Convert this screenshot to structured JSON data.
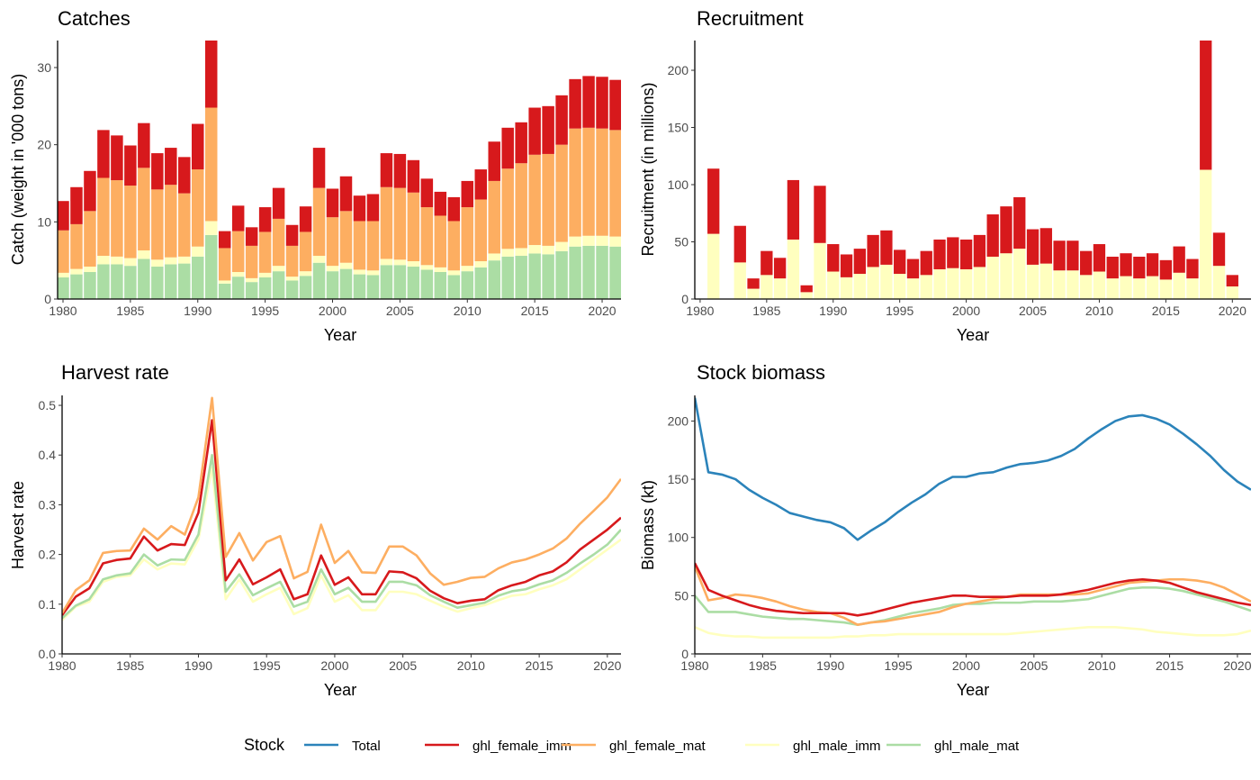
{
  "colors": {
    "Total": "#2b83ba",
    "ghl_female_imm": "#d7191c",
    "ghl_female_mat": "#fdae61",
    "ghl_male_imm": "#ffffbf",
    "ghl_male_mat": "#abdda4"
  },
  "legend": {
    "title": "Stock",
    "items": [
      "Total",
      "ghl_female_imm",
      "ghl_female_mat",
      "ghl_male_imm",
      "ghl_male_mat"
    ]
  },
  "chart_data": [
    {
      "id": "catches",
      "type": "bar",
      "stacked": true,
      "title": "Catches",
      "xlabel": "Year",
      "ylabel": "Catch (weight in '000 tons)",
      "xlim": [
        1979.6,
        2021.4
      ],
      "ylim": [
        0,
        33.5
      ],
      "xticks": [
        1980,
        1985,
        1990,
        1995,
        2000,
        2005,
        2010,
        2015,
        2020
      ],
      "yticks": [
        0,
        10,
        20,
        30
      ],
      "x": [
        1980,
        1981,
        1982,
        1983,
        1984,
        1985,
        1986,
        1987,
        1988,
        1989,
        1990,
        1991,
        1992,
        1993,
        1994,
        1995,
        1996,
        1997,
        1998,
        1999,
        2000,
        2001,
        2002,
        2003,
        2004,
        2005,
        2006,
        2007,
        2008,
        2009,
        2010,
        2011,
        2012,
        2013,
        2014,
        2015,
        2016,
        2017,
        2018,
        2019,
        2020,
        2021
      ],
      "stack_order": [
        "ghl_male_mat",
        "ghl_male_imm",
        "ghl_female_mat",
        "ghl_female_imm"
      ],
      "series": [
        {
          "name": "ghl_male_mat",
          "values": [
            2.8,
            3.2,
            3.5,
            4.5,
            4.5,
            4.3,
            5.2,
            4.2,
            4.5,
            4.6,
            5.5,
            8.3,
            2.0,
            2.9,
            2.2,
            2.8,
            3.6,
            2.4,
            3.0,
            4.7,
            3.6,
            3.9,
            3.2,
            3.1,
            4.4,
            4.4,
            4.2,
            3.8,
            3.5,
            3.1,
            3.6,
            4.1,
            5.0,
            5.5,
            5.6,
            5.9,
            5.8,
            6.2,
            6.8,
            6.9,
            6.9,
            6.8
          ]
        },
        {
          "name": "ghl_male_imm",
          "values": [
            0.6,
            0.7,
            0.7,
            1.1,
            1.0,
            1.0,
            1.1,
            0.9,
            0.9,
            0.9,
            1.3,
            1.8,
            0.4,
            0.6,
            0.5,
            0.6,
            0.7,
            0.5,
            0.6,
            0.9,
            0.7,
            0.8,
            0.6,
            0.6,
            0.8,
            0.7,
            0.7,
            0.6,
            0.6,
            0.6,
            0.7,
            0.8,
            0.9,
            1.0,
            1.0,
            1.1,
            1.1,
            1.2,
            1.3,
            1.3,
            1.3,
            1.3
          ]
        },
        {
          "name": "ghl_female_mat",
          "values": [
            5.5,
            5.8,
            7.2,
            10.1,
            9.9,
            9.4,
            10.7,
            9.1,
            9.4,
            8.2,
            10.0,
            14.7,
            4.2,
            5.3,
            4.2,
            5.3,
            6.1,
            4.0,
            5.1,
            8.8,
            6.3,
            6.7,
            6.3,
            6.4,
            9.3,
            9.3,
            8.9,
            7.5,
            6.7,
            6.4,
            7.6,
            8.0,
            9.4,
            10.4,
            11.0,
            11.7,
            11.9,
            12.6,
            14.0,
            14.0,
            13.9,
            13.8
          ]
        },
        {
          "name": "ghl_female_imm",
          "values": [
            3.8,
            4.8,
            5.2,
            6.2,
            5.8,
            5.2,
            5.8,
            4.7,
            4.8,
            4.7,
            5.9,
            8.8,
            2.2,
            3.3,
            2.4,
            3.2,
            4.0,
            2.7,
            3.3,
            5.2,
            3.7,
            4.5,
            3.3,
            3.5,
            4.4,
            4.4,
            4.2,
            3.7,
            3.1,
            3.1,
            3.4,
            3.9,
            5.1,
            5.3,
            5.3,
            6.1,
            6.2,
            6.4,
            6.4,
            6.7,
            6.7,
            6.5
          ]
        }
      ]
    },
    {
      "id": "recruitment",
      "type": "bar",
      "stacked": true,
      "title": "Recruitment",
      "xlabel": "Year",
      "ylabel": "Recruitment (in millions)",
      "xlim": [
        1979.6,
        2021.4
      ],
      "ylim": [
        0,
        226
      ],
      "xticks": [
        1980,
        1985,
        1990,
        1995,
        2000,
        2005,
        2010,
        2015,
        2020
      ],
      "yticks": [
        0,
        50,
        100,
        150,
        200
      ],
      "x": [
        1981,
        1983,
        1984,
        1985,
        1986,
        1987,
        1988,
        1989,
        1990,
        1991,
        1992,
        1993,
        1994,
        1995,
        1996,
        1997,
        1998,
        1999,
        2000,
        2001,
        2002,
        2003,
        2004,
        2005,
        2006,
        2007,
        2008,
        2009,
        2010,
        2011,
        2012,
        2013,
        2014,
        2015,
        2016,
        2017,
        2018,
        2019,
        2020
      ],
      "stack_order": [
        "ghl_male_imm",
        "ghl_female_imm"
      ],
      "series": [
        {
          "name": "ghl_male_imm",
          "values": [
            57,
            32,
            9,
            21,
            18,
            52,
            6,
            49,
            24,
            19,
            22,
            28,
            30,
            22,
            18,
            21,
            26,
            27,
            26,
            28,
            37,
            40,
            44,
            30,
            31,
            25,
            25,
            21,
            24,
            18,
            20,
            18,
            20,
            17,
            23,
            18,
            113,
            29,
            11
          ]
        },
        {
          "name": "ghl_female_imm",
          "values": [
            57,
            32,
            9,
            21,
            18,
            52,
            6,
            50,
            24,
            20,
            22,
            28,
            30,
            21,
            17,
            21,
            26,
            27,
            26,
            28,
            37,
            41,
            45,
            31,
            31,
            26,
            26,
            21,
            24,
            19,
            20,
            19,
            20,
            17,
            23,
            17,
            113,
            29,
            10
          ]
        }
      ]
    },
    {
      "id": "harvest",
      "type": "line",
      "title": "Harvest rate",
      "xlabel": "Year",
      "ylabel": "Harvest rate",
      "xlim": [
        1980,
        2021
      ],
      "ylim": [
        0,
        0.52
      ],
      "xticks": [
        1980,
        1985,
        1990,
        1995,
        2000,
        2005,
        2010,
        2015,
        2020
      ],
      "yticks": [
        0.0,
        0.1,
        0.2,
        0.3,
        0.4,
        0.5
      ],
      "ytick_labels": [
        "0.0",
        "0.1",
        "0.2",
        "0.3",
        "0.4",
        "0.5"
      ],
      "x": [
        1980,
        1981,
        1982,
        1983,
        1984,
        1985,
        1986,
        1987,
        1988,
        1989,
        1990,
        1991,
        1992,
        1993,
        1994,
        1995,
        1996,
        1997,
        1998,
        1999,
        2000,
        2001,
        2002,
        2003,
        2004,
        2005,
        2006,
        2007,
        2008,
        2009,
        2010,
        2011,
        2012,
        2013,
        2014,
        2015,
        2016,
        2017,
        2018,
        2019,
        2020,
        2021
      ],
      "series": [
        {
          "name": "ghl_male_imm",
          "values": [
            0.068,
            0.095,
            0.105,
            0.145,
            0.155,
            0.158,
            0.19,
            0.17,
            0.182,
            0.18,
            0.23,
            0.375,
            0.11,
            0.15,
            0.105,
            0.12,
            0.133,
            0.08,
            0.092,
            0.158,
            0.105,
            0.118,
            0.088,
            0.088,
            0.125,
            0.125,
            0.12,
            0.107,
            0.095,
            0.085,
            0.092,
            0.098,
            0.108,
            0.117,
            0.12,
            0.13,
            0.138,
            0.15,
            0.17,
            0.19,
            0.21,
            0.23
          ]
        },
        {
          "name": "ghl_male_mat",
          "values": [
            0.072,
            0.097,
            0.11,
            0.15,
            0.158,
            0.162,
            0.2,
            0.178,
            0.19,
            0.189,
            0.24,
            0.4,
            0.125,
            0.16,
            0.118,
            0.132,
            0.145,
            0.095,
            0.105,
            0.17,
            0.12,
            0.133,
            0.105,
            0.105,
            0.145,
            0.145,
            0.138,
            0.118,
            0.105,
            0.093,
            0.098,
            0.103,
            0.117,
            0.126,
            0.13,
            0.14,
            0.148,
            0.163,
            0.182,
            0.2,
            0.22,
            0.25
          ]
        },
        {
          "name": "ghl_female_imm",
          "values": [
            0.078,
            0.115,
            0.132,
            0.182,
            0.189,
            0.192,
            0.236,
            0.208,
            0.221,
            0.219,
            0.284,
            0.47,
            0.148,
            0.19,
            0.14,
            0.154,
            0.17,
            0.11,
            0.12,
            0.198,
            0.139,
            0.154,
            0.12,
            0.12,
            0.166,
            0.164,
            0.152,
            0.127,
            0.112,
            0.102,
            0.107,
            0.11,
            0.128,
            0.138,
            0.145,
            0.158,
            0.166,
            0.184,
            0.21,
            0.23,
            0.25,
            0.274
          ]
        },
        {
          "name": "ghl_female_mat",
          "values": [
            0.082,
            0.128,
            0.148,
            0.203,
            0.207,
            0.208,
            0.252,
            0.23,
            0.257,
            0.24,
            0.315,
            0.515,
            0.195,
            0.243,
            0.188,
            0.225,
            0.237,
            0.152,
            0.165,
            0.26,
            0.183,
            0.207,
            0.164,
            0.163,
            0.216,
            0.216,
            0.198,
            0.162,
            0.139,
            0.145,
            0.153,
            0.155,
            0.172,
            0.184,
            0.19,
            0.2,
            0.212,
            0.232,
            0.262,
            0.288,
            0.315,
            0.352
          ]
        }
      ]
    },
    {
      "id": "biomass",
      "type": "line",
      "title": "Stock biomass",
      "xlabel": "Year",
      "ylabel": "Biomass (kt)",
      "xlim": [
        1980,
        2021
      ],
      "ylim": [
        0,
        222
      ],
      "xticks": [
        1980,
        1985,
        1990,
        1995,
        2000,
        2005,
        2010,
        2015,
        2020
      ],
      "yticks": [
        0,
        50,
        100,
        150,
        200
      ],
      "x": [
        1980,
        1981,
        1982,
        1983,
        1984,
        1985,
        1986,
        1987,
        1988,
        1989,
        1990,
        1991,
        1992,
        1993,
        1994,
        1995,
        1996,
        1997,
        1998,
        1999,
        2000,
        2001,
        2002,
        2003,
        2004,
        2005,
        2006,
        2007,
        2008,
        2009,
        2010,
        2011,
        2012,
        2013,
        2014,
        2015,
        2016,
        2017,
        2018,
        2019,
        2020,
        2021
      ],
      "series": [
        {
          "name": "ghl_male_imm",
          "values": [
            23,
            18,
            16,
            15,
            15,
            14,
            14,
            14,
            14,
            14,
            14,
            15,
            15,
            16,
            16,
            17,
            17,
            17,
            17,
            17,
            17,
            17,
            17,
            17,
            18,
            19,
            20,
            21,
            22,
            23,
            23,
            23,
            22,
            21,
            19,
            18,
            17,
            16,
            16,
            16,
            17,
            20
          ]
        },
        {
          "name": "ghl_male_mat",
          "values": [
            50,
            36,
            36,
            36,
            34,
            32,
            31,
            30,
            30,
            29,
            28,
            27,
            25,
            27,
            29,
            32,
            35,
            37,
            39,
            42,
            43,
            43,
            44,
            44,
            44,
            45,
            45,
            45,
            46,
            47,
            50,
            53,
            56,
            57,
            57,
            56,
            54,
            51,
            48,
            45,
            41,
            37
          ]
        },
        {
          "name": "ghl_female_mat",
          "values": [
            75,
            46,
            48,
            51,
            50,
            48,
            45,
            41,
            38,
            36,
            35,
            31,
            25,
            27,
            28,
            30,
            32,
            34,
            36,
            40,
            43,
            45,
            47,
            49,
            51,
            51,
            51,
            51,
            51,
            52,
            55,
            58,
            61,
            62,
            63,
            64,
            64,
            63,
            61,
            57,
            51,
            45
          ]
        },
        {
          "name": "ghl_female_imm",
          "values": [
            78,
            55,
            50,
            46,
            42,
            39,
            37,
            36,
            35,
            35,
            35,
            35,
            33,
            35,
            38,
            41,
            44,
            46,
            48,
            50,
            50,
            49,
            49,
            49,
            50,
            50,
            50,
            51,
            53,
            55,
            58,
            61,
            63,
            64,
            63,
            61,
            57,
            53,
            50,
            47,
            44,
            42
          ]
        },
        {
          "name": "Total",
          "values": [
            220,
            156,
            154,
            150,
            141,
            134,
            128,
            121,
            118,
            115,
            113,
            108,
            98,
            106,
            113,
            122,
            130,
            137,
            146,
            152,
            152,
            155,
            156,
            160,
            163,
            164,
            166,
            170,
            176,
            185,
            193,
            200,
            204,
            205,
            202,
            197,
            189,
            180,
            170,
            158,
            148,
            141
          ]
        }
      ]
    }
  ]
}
